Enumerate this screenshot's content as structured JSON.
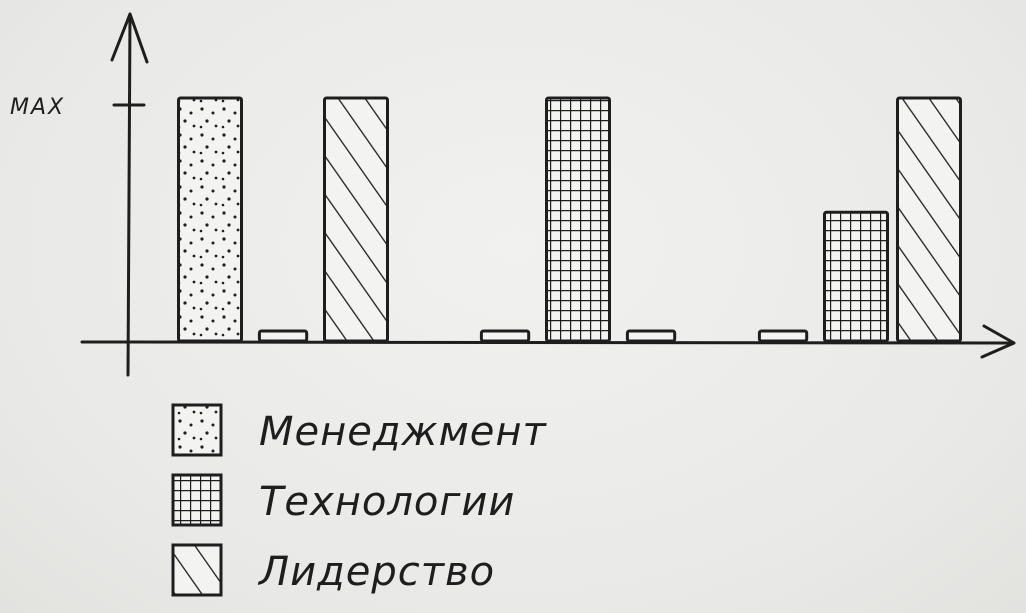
{
  "chart_data": {
    "type": "bar",
    "ylabel": "",
    "xlabel": "",
    "y_tick_label": "MAX",
    "ylim": [
      0,
      1
    ],
    "grid": false,
    "legend_position": "bottom-left",
    "pattern_colors": {
      "ink": "#1e1e1e",
      "fill": "#f3f3f1"
    },
    "series": [
      {
        "name": "Менеджмент",
        "pattern": "dots"
      },
      {
        "name": "Технологии",
        "pattern": "grid"
      },
      {
        "name": "Лидерство",
        "pattern": "hatch"
      }
    ],
    "groups": [
      {
        "values": [
          1.0,
          0.03,
          1.0
        ]
      },
      {
        "values": [
          0.03,
          1.0,
          0.03
        ]
      },
      {
        "values": [
          0.03,
          0.53,
          1.0
        ]
      }
    ]
  }
}
